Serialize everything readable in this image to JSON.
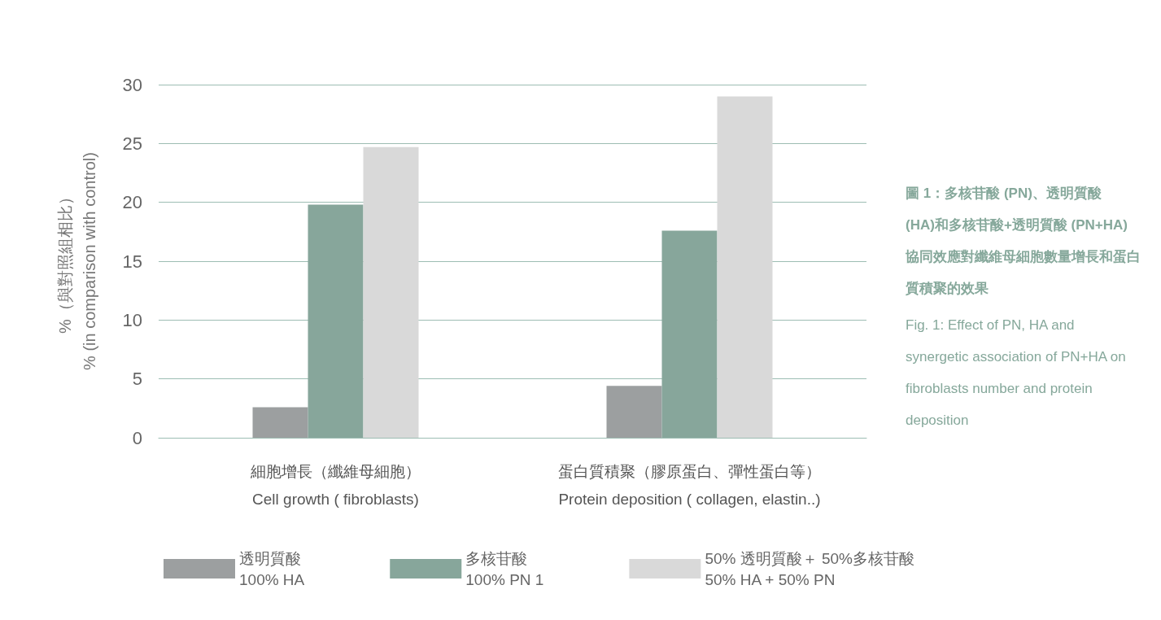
{
  "chart_data": {
    "type": "bar",
    "ylabel": "%（與對照組相比）\n% (in comparison with control)",
    "categories": [
      "細胞增長（纖維母細胞）\nCell growth ( fibroblasts)",
      "蛋白質積聚（膠原蛋白、彈性蛋白等）\nProtein deposition ( collagen, elastin..)"
    ],
    "series": [
      {
        "name": "透明質酸\n100% HA",
        "color": "#9c9fa0",
        "values": [
          2.6,
          4.4
        ]
      },
      {
        "name": "多核苷酸\n100% PN 1",
        "color": "#87a69b",
        "values": [
          19.8,
          17.6
        ]
      },
      {
        "name": "50% 透明質酸＋ 50%多核苷酸\n50% HA + 50% PN",
        "color": "#d9d9d9",
        "values": [
          24.7,
          29.0
        ]
      }
    ],
    "ylim": [
      0,
      30
    ],
    "yticks": [
      0,
      5,
      10,
      15,
      20,
      25,
      30
    ],
    "grid": "y",
    "legend": "bottom",
    "annotations": [
      "圖 1：多核苷酸 (PN)、透明質酸 (HA)和多核苷酸+透明質酸 (PN+HA) 協同效應對纖維母細胞數量增長和蛋白質積聚的效果",
      "Fig. 1: Effect of PN, HA and synergetic association of PN+HA on fibroblasts number and protein deposition"
    ]
  }
}
